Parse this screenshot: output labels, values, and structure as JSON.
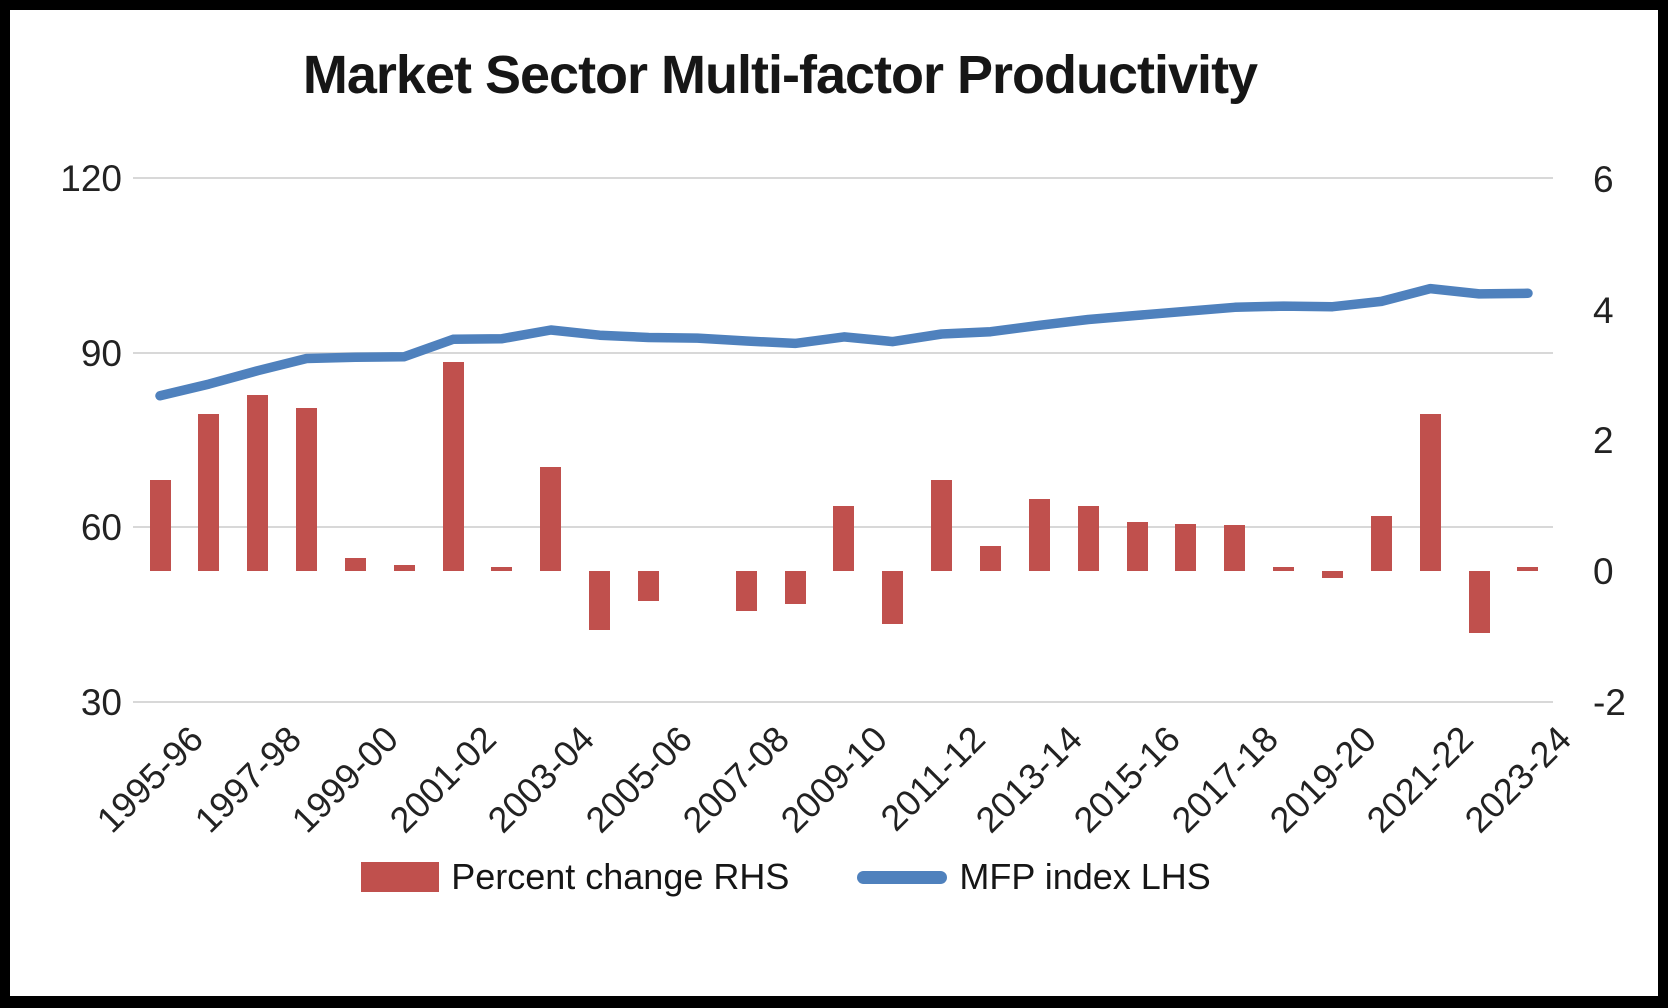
{
  "page": {
    "title": "Market Sector Multi-factor Productivity"
  },
  "legend": {
    "bar_label": "Percent change RHS",
    "line_label": "MFP index LHS"
  },
  "colors": {
    "bar": "#C0504D",
    "line": "#4F81BD",
    "gridline": "#d8d8d8",
    "text": "#222222"
  },
  "chart_data": {
    "type": "bar",
    "subtype": "dual-axis combo: bars (right axis) + line (left axis)",
    "title": "Market Sector Multi-factor Productivity",
    "categories": [
      "1995-96",
      "1996-97",
      "1997-98",
      "1998-99",
      "1999-00",
      "2000-01",
      "2001-02",
      "2002-03",
      "2003-04",
      "2004-05",
      "2005-06",
      "2006-07",
      "2007-08",
      "2008-09",
      "2009-10",
      "2010-11",
      "2011-12",
      "2012-13",
      "2013-14",
      "2014-15",
      "2015-16",
      "2016-17",
      "2017-18",
      "2018-19",
      "2019-20",
      "2020-21",
      "2021-22",
      "2022-23",
      "2023-24"
    ],
    "x_tick_labels": [
      "1995-96",
      "1997-98",
      "1999-00",
      "2001-02",
      "2003-04",
      "2005-06",
      "2007-08",
      "2009-10",
      "2011-12",
      "2013-14",
      "2015-16",
      "2017-18",
      "2019-20",
      "2021-22",
      "2023-24"
    ],
    "series": [
      {
        "name": "Percent change RHS",
        "type": "bar",
        "axis": "right",
        "color": "#C0504D",
        "values": [
          1.4,
          2.4,
          2.7,
          2.5,
          0.2,
          0.1,
          3.2,
          0.07,
          1.6,
          -0.9,
          -0.45,
          0.0,
          -0.6,
          -0.5,
          1.0,
          -0.8,
          1.4,
          0.38,
          1.1,
          1.0,
          0.75,
          0.72,
          0.7,
          0.07,
          -0.1,
          0.85,
          2.4,
          -0.95,
          0.07
        ]
      },
      {
        "name": "MFP index LHS",
        "type": "line",
        "axis": "left",
        "color": "#4F81BD",
        "values": [
          82.6,
          84.6,
          86.9,
          89.0,
          89.2,
          89.3,
          92.3,
          92.4,
          93.9,
          93.0,
          92.6,
          92.5,
          92.0,
          91.6,
          92.7,
          91.9,
          93.2,
          93.6,
          94.7,
          95.7,
          96.4,
          97.1,
          97.8,
          98.0,
          97.9,
          98.8,
          101.0,
          100.1,
          100.2
        ]
      }
    ],
    "left_axis": {
      "ticks": [
        120,
        90,
        60,
        30
      ],
      "range": [
        30,
        120
      ]
    },
    "right_axis": {
      "ticks": [
        6,
        4,
        2,
        0,
        -2
      ],
      "range": [
        -2,
        6
      ]
    },
    "grid": "horizontal gridlines at left-axis majors, no vertical grid, no axis spines",
    "legend_position": "bottom center"
  }
}
